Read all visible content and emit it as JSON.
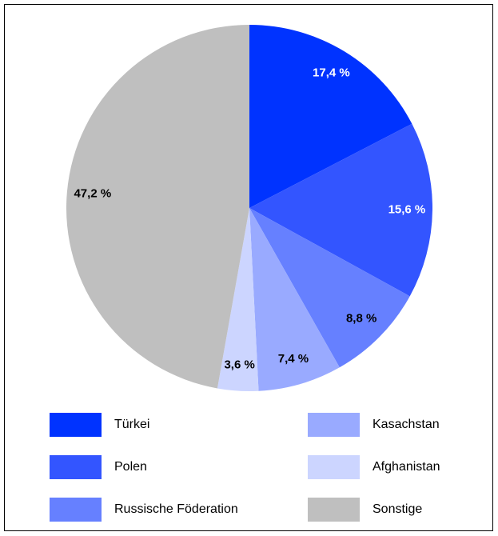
{
  "chart_data": {
    "type": "pie",
    "categories": [
      "Türkei",
      "Polen",
      "Russische Föderation",
      "Kasachstan",
      "Afghanistan",
      "Sonstige"
    ],
    "values": [
      17.4,
      15.6,
      8.8,
      7.4,
      3.6,
      47.2
    ],
    "value_labels": [
      "17,4 %",
      "15,6 %",
      "8,8 %",
      "7,4 %",
      "3,6 %",
      "47,2 %"
    ],
    "colors": [
      "#0033ff",
      "#3355ff",
      "#6680ff",
      "#99aaff",
      "#ccd5ff",
      "#bfbfbf"
    ]
  }
}
